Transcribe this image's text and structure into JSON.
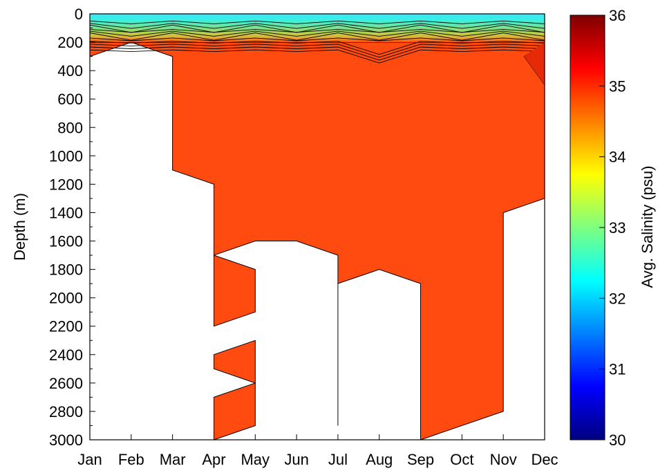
{
  "chart_data": {
    "type": "contour",
    "x_axis": {
      "ticks": [
        "Jan",
        "Feb",
        "Mar",
        "Apr",
        "May",
        "Jun",
        "Jul",
        "Aug",
        "Sep",
        "Oct",
        "Nov",
        "Dec"
      ]
    },
    "y_axis": {
      "label": "Depth (m)",
      "ticks": [
        0,
        200,
        400,
        600,
        800,
        1000,
        1200,
        1400,
        1600,
        1800,
        2000,
        2200,
        2400,
        2600,
        2800,
        3000
      ],
      "range": [
        0,
        3000
      ],
      "inverted": true
    },
    "colorbar": {
      "label": "Avg. Salinity (psu)",
      "ticks": [
        30,
        31,
        32,
        33,
        34,
        35,
        36
      ],
      "range": [
        30,
        36
      ],
      "colormap": "jet"
    },
    "deep_water_salinity": 35.1,
    "data_coverage": [
      {
        "month": "Jan",
        "depth_ranges": [
          [
            0,
            300
          ]
        ]
      },
      {
        "month": "Feb",
        "depth_ranges": [
          [
            0,
            200
          ]
        ]
      },
      {
        "month": "Mar",
        "depth_ranges": [
          [
            0,
            1100
          ]
        ]
      },
      {
        "month": "Apr",
        "depth_ranges": [
          [
            0,
            1700
          ],
          [
            1700,
            2200
          ],
          [
            2400,
            2500
          ],
          [
            2700,
            3000
          ]
        ]
      },
      {
        "month": "May",
        "depth_ranges": [
          [
            0,
            1600
          ],
          [
            1800,
            2100
          ],
          [
            2300,
            2600
          ],
          [
            2600,
            2900
          ]
        ]
      },
      {
        "month": "Jun",
        "depth_ranges": [
          [
            0,
            1600
          ]
        ]
      },
      {
        "month": "Jul",
        "depth_ranges": [
          [
            0,
            1900
          ]
        ]
      },
      {
        "month": "Aug",
        "depth_ranges": [
          [
            0,
            1800
          ]
        ]
      },
      {
        "month": "Sep",
        "depth_ranges": [
          [
            0,
            3000
          ]
        ]
      },
      {
        "month": "Oct",
        "depth_ranges": [
          [
            0,
            2900
          ]
        ]
      },
      {
        "month": "Nov",
        "depth_ranges": [
          [
            0,
            2800
          ]
        ]
      },
      {
        "month": "Dec",
        "depth_ranges": [
          [
            0,
            1300
          ]
        ]
      }
    ],
    "surface_salinity": [
      {
        "month": "Jan",
        "surface": 32.0,
        "at_200m": 35.3
      },
      {
        "month": "Feb",
        "surface": 32.0,
        "at_200m": 33.5
      },
      {
        "month": "Mar",
        "surface": 32.2,
        "at_200m": 34.0
      },
      {
        "month": "Apr",
        "surface": 32.6,
        "at_200m": 34.5
      },
      {
        "month": "May",
        "surface": 32.2,
        "at_200m": 34.6
      },
      {
        "month": "Jun",
        "surface": 32.6,
        "at_200m": 34.6
      },
      {
        "month": "Jul",
        "surface": 32.2,
        "at_200m": 34.6
      },
      {
        "month": "Aug",
        "surface": 32.5,
        "at_200m": 34.7
      },
      {
        "month": "Sep",
        "surface": 32.4,
        "at_200m": 34.6
      },
      {
        "month": "Oct",
        "surface": 32.2,
        "at_200m": 34.6
      },
      {
        "month": "Nov",
        "surface": 32.4,
        "at_200m": 34.6
      },
      {
        "month": "Dec",
        "surface": 32.0,
        "at_200m": 35.2
      }
    ]
  }
}
